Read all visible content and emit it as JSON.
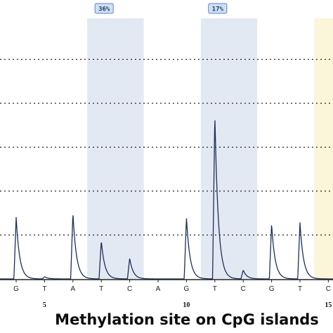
{
  "chart_data": {
    "type": "line",
    "title": "",
    "xlabel": "Methylation site on CpG islands",
    "ylabel": "",
    "bases": [
      "G",
      "T",
      "A",
      "T",
      "C",
      "A",
      "G",
      "T",
      "C",
      "G",
      "T",
      "C"
    ],
    "position_ticks": [
      {
        "base_index": 1,
        "label": "5"
      },
      {
        "base_index": 6,
        "label": "10"
      },
      {
        "base_index": 11,
        "label": "15"
      }
    ],
    "peaks": [
      {
        "base": "G",
        "value": 1.4
      },
      {
        "base": "T",
        "value": 0.05
      },
      {
        "base": "A",
        "value": 1.5
      },
      {
        "base": "T",
        "value": 0.87
      },
      {
        "base": "C",
        "value": 0.47
      },
      {
        "base": "A",
        "value": 0.0
      },
      {
        "base": "G",
        "value": 1.4
      },
      {
        "base": "T",
        "value": 3.75
      },
      {
        "base": "C",
        "value": 0.2
      },
      {
        "base": "G",
        "value": 1.25
      },
      {
        "base": "T",
        "value": 1.28
      },
      {
        "base": "C",
        "value": 0.0
      }
    ],
    "ylim": [
      0,
      5
    ],
    "gridlines": [
      1,
      2,
      3,
      4,
      5
    ],
    "grid": true,
    "highlight_regions": [
      {
        "bases": [
          "T",
          "C"
        ],
        "start_index": 3,
        "end_index": 4,
        "methylation_label": "36%",
        "color": "#e3e9f2"
      },
      {
        "bases": [
          "T",
          "C"
        ],
        "start_index": 7,
        "end_index": 8,
        "methylation_label": "17%",
        "color": "#e3e9f2"
      },
      {
        "bases": [
          "C"
        ],
        "start_index": 11,
        "end_index": 11,
        "methylation_label": "",
        "color": "#fbf5d9"
      }
    ],
    "colors": {
      "trace": "#1c2f5c",
      "badge_fill": "#cfe0f6",
      "badge_border": "#5f84bb",
      "grid": "#222222",
      "axis": "#222222"
    }
  }
}
